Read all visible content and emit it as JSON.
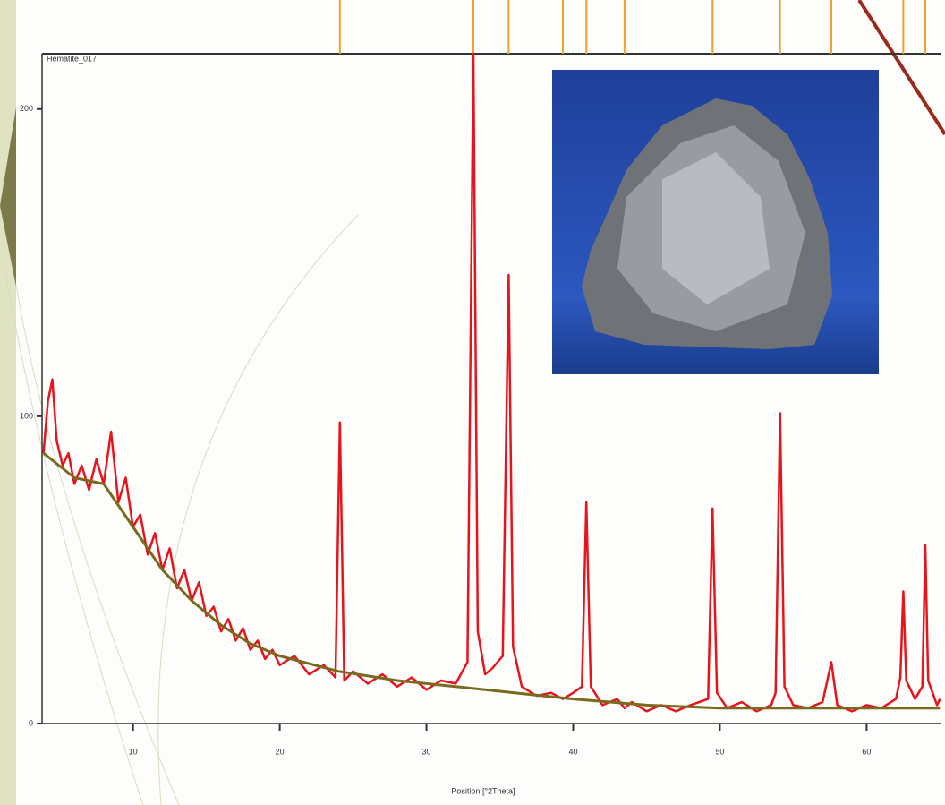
{
  "chart_data": {
    "type": "line",
    "title": "Hematite_017",
    "x_label": "Position [°2Theta]",
    "xlim": [
      3.8,
      65.1
    ],
    "ylim": [
      0,
      218
    ],
    "xticks": [
      10,
      20,
      30,
      40,
      50,
      60
    ],
    "yticks": [
      0,
      100,
      200
    ],
    "series": [
      {
        "color": "#e8141c",
        "x": [
          3.9,
          4.2,
          4.5,
          4.8,
          5.2,
          5.6,
          6,
          6.5,
          7,
          7.5,
          8,
          8.5,
          9,
          9.5,
          10,
          10.5,
          11,
          11.5,
          12,
          12.5,
          13,
          13.5,
          14,
          14.5,
          15,
          15.5,
          16,
          16.5,
          17,
          17.5,
          18,
          18.5,
          19,
          19.5,
          20,
          21,
          22,
          23,
          23.8,
          24.1,
          24.4,
          25,
          26,
          27,
          28,
          29,
          30,
          31,
          32,
          32.8,
          33.2,
          33.5,
          34,
          34.5,
          35.2,
          35.6,
          35.9,
          36.5,
          37.5,
          38.5,
          39.3,
          40,
          40.6,
          40.9,
          41.2,
          42,
          43,
          43.5,
          44,
          45,
          46,
          47,
          48,
          49.2,
          49.5,
          49.8,
          50.5,
          51.5,
          52.5,
          53.5,
          53.8,
          54.1,
          54.4,
          55,
          56,
          57,
          57.6,
          58,
          59,
          60,
          61,
          62,
          62.3,
          62.5,
          62.7,
          63.3,
          63.8,
          64,
          64.2,
          64.8,
          65
        ],
        "values": [
          88,
          105,
          112,
          92,
          84,
          88,
          78,
          84,
          76,
          86,
          78,
          95,
          72,
          80,
          64,
          68,
          55,
          62,
          50,
          57,
          44,
          50,
          40,
          46,
          35,
          38,
          30,
          34,
          27,
          31,
          24,
          27,
          21,
          24,
          19,
          22,
          16,
          19,
          15,
          98,
          14,
          17,
          13,
          16,
          12,
          15,
          11,
          14,
          13,
          20,
          218,
          30,
          16,
          18,
          22,
          146,
          25,
          12,
          9,
          10,
          8,
          10,
          12,
          72,
          12,
          6,
          8,
          5,
          7,
          4,
          6,
          4,
          6,
          8,
          70,
          10,
          5,
          7,
          4,
          6,
          10,
          101,
          12,
          6,
          5,
          7,
          20,
          6,
          4,
          6,
          5,
          8,
          15,
          43,
          14,
          8,
          12,
          58,
          14,
          6,
          8
        ]
      },
      {
        "color": "#7a6a1f",
        "x": [
          3.9,
          6,
          8,
          10,
          12,
          14,
          16,
          18,
          20,
          24,
          28,
          32,
          36,
          40,
          45,
          50,
          55,
          60,
          65
        ],
        "values": [
          88,
          80,
          78,
          64,
          50,
          40,
          32,
          26,
          22,
          17,
          14,
          12,
          10,
          8,
          6,
          5,
          5,
          5,
          5
        ]
      }
    ],
    "reference_peaks": {
      "color": "#f0a030",
      "x": [
        24.1,
        33.2,
        35.6,
        39.3,
        40.9,
        43.5,
        49.5,
        54.1,
        57.6,
        62.5,
        64.0
      ]
    }
  }
}
